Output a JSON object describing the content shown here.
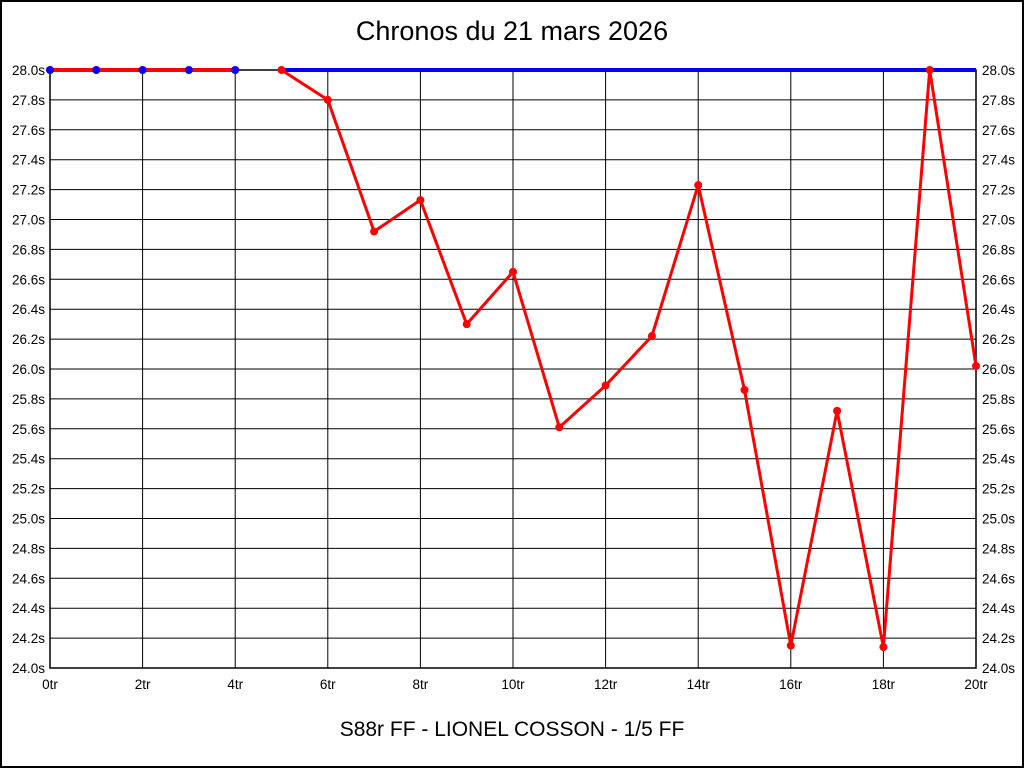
{
  "chart_data": {
    "type": "line",
    "title": "Chronos du 21 mars 2026",
    "footer_label": "S88r FF - LIONEL COSSON - 1/5 FF",
    "xlabel": "",
    "ylabel": "",
    "xlim": [
      0,
      20
    ],
    "ylim": [
      24.0,
      28.0
    ],
    "x_tick_step": 2,
    "y_tick_step": 0.2,
    "x_tick_labels": [
      "0tr",
      "2tr",
      "4tr",
      "6tr",
      "8tr",
      "10tr",
      "12tr",
      "14tr",
      "16tr",
      "18tr",
      "20tr"
    ],
    "y_tick_labels": [
      "28.0s",
      "27.8s",
      "27.6s",
      "27.4s",
      "27.2s",
      "27.0s",
      "26.8s",
      "26.6s",
      "26.4s",
      "26.2s",
      "26.0s",
      "25.8s",
      "25.6s",
      "25.4s",
      "25.2s",
      "25.0s",
      "24.8s",
      "24.6s",
      "24.4s",
      "24.2s",
      "24.0s"
    ],
    "y_labels_on_both_sides": true,
    "grid": true,
    "legend_position": "none",
    "colors": {
      "background": "#ffffff",
      "grid": "#000000",
      "text": "#000000",
      "lap_line": "#ff0000",
      "reference_line": "#0000ff"
    },
    "series": [
      {
        "name": "reference-28s-line",
        "color": "#0000ff",
        "line_width": 4,
        "markers": false,
        "marker_color": "#0000ff",
        "marker_radius": 4,
        "x": [
          5,
          20
        ],
        "y": [
          28.0,
          28.0
        ]
      },
      {
        "name": "opening-laps",
        "color": "#ff0000",
        "line_width": 4,
        "markers": true,
        "marker_color": "#0000ff",
        "marker_radius": 4,
        "x": [
          0,
          1,
          2,
          3,
          4
        ],
        "y": [
          28.0,
          28.0,
          28.0,
          28.0,
          28.0
        ]
      },
      {
        "name": "lap-times",
        "color": "#ff0000",
        "line_width": 3,
        "markers": true,
        "marker_color": "#ff0000",
        "marker_radius": 4,
        "x": [
          5,
          6,
          7,
          8,
          9,
          10,
          11,
          12,
          13,
          14,
          15,
          16,
          17,
          18,
          19,
          20
        ],
        "y": [
          28.0,
          27.8,
          26.92,
          27.13,
          26.3,
          26.65,
          25.61,
          25.89,
          26.22,
          27.23,
          25.86,
          24.15,
          25.72,
          24.14,
          28.0,
          26.02
        ]
      }
    ]
  }
}
